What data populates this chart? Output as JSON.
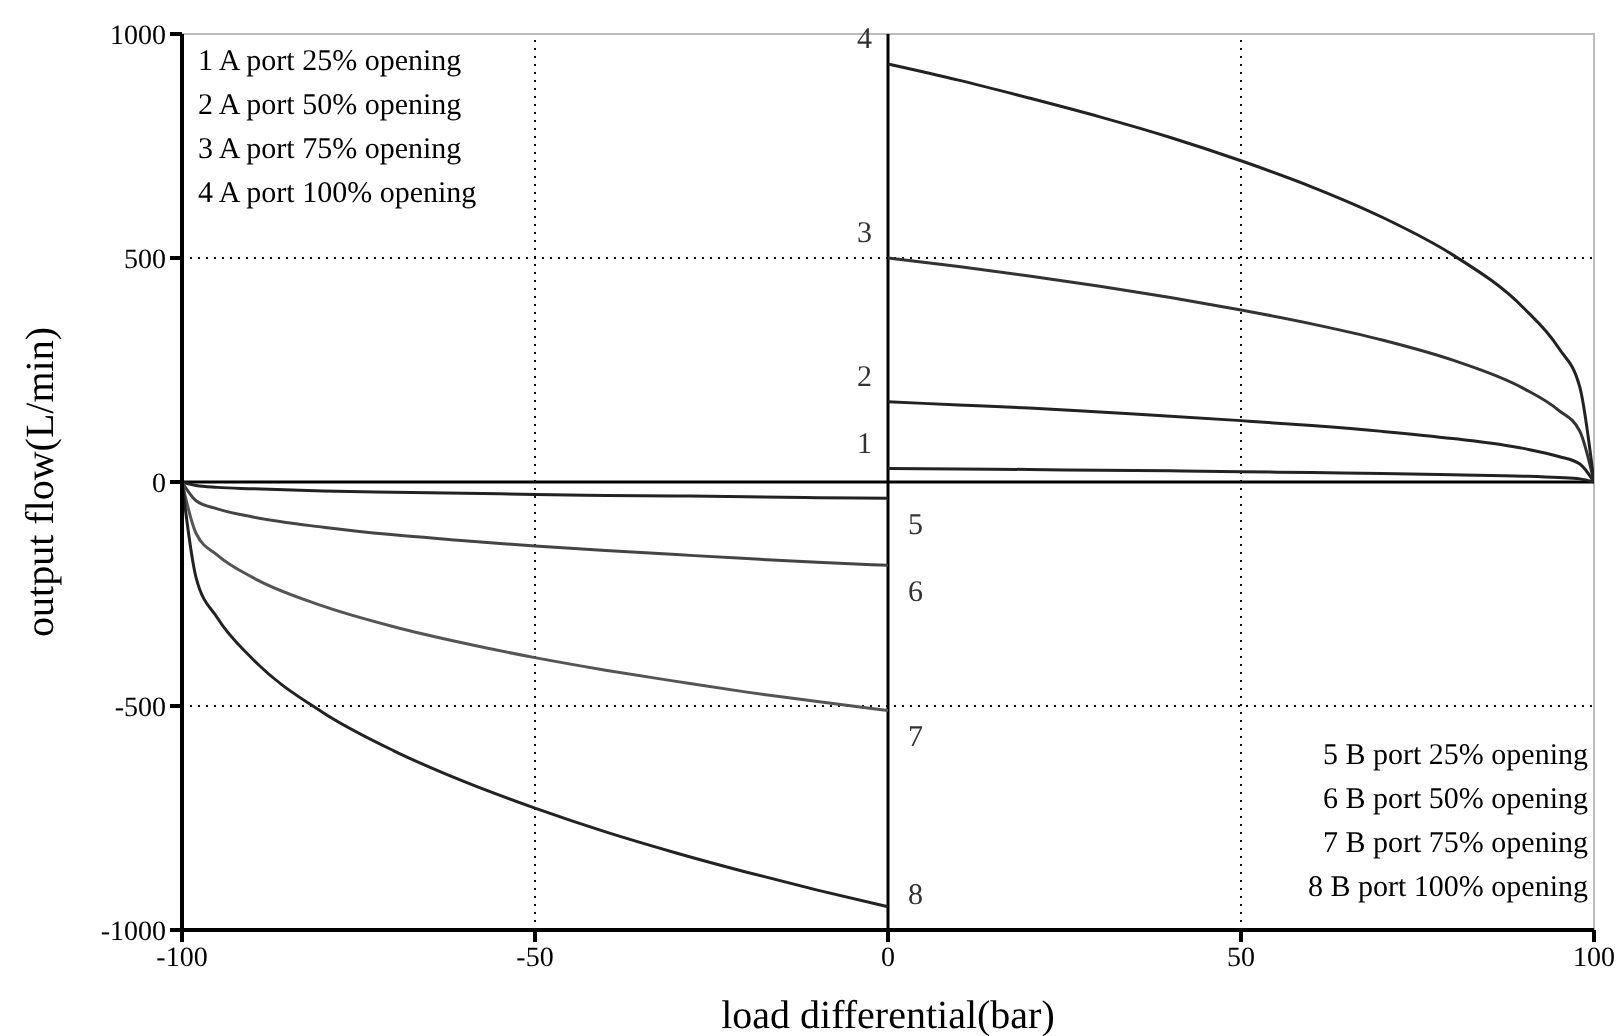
{
  "chart_data": {
    "type": "line",
    "xlabel": "load differential(bar)",
    "ylabel": "output flow(L/min)",
    "xlim": [
      -100,
      100
    ],
    "xticks": [
      -100,
      -50,
      0,
      50,
      100
    ],
    "ylim": [
      -1000,
      1000
    ],
    "yticks": [
      -1000,
      -500,
      0,
      500,
      1000
    ],
    "grid": true,
    "line_style": "solid",
    "annotations": [
      "1 A port 25% opening",
      "2 A port 50% opening",
      "3 A port 75% opening",
      "4 A port 100% opening",
      "5 B port 25% opening",
      "6 B port 50% opening",
      "7 B port 75% opening",
      "8 B port 100% opening"
    ],
    "series": [
      {
        "name": "1",
        "color": "#222222",
        "x": [
          0,
          10,
          20,
          30,
          40,
          50,
          60,
          70,
          80,
          90,
          95,
          98,
          100
        ],
        "values": [
          30,
          29,
          28,
          26,
          25,
          23,
          21,
          19,
          16,
          13,
          10,
          7,
          0
        ]
      },
      {
        "name": "2",
        "color": "#222222",
        "x": [
          0,
          10,
          20,
          30,
          40,
          50,
          60,
          70,
          80,
          90,
          95,
          98,
          100
        ],
        "values": [
          179,
          172,
          165,
          156,
          147,
          137,
          126,
          113,
          97,
          75,
          57,
          40,
          0
        ]
      },
      {
        "name": "3",
        "color": "#333333",
        "x": [
          0,
          10,
          20,
          30,
          40,
          50,
          60,
          70,
          80,
          90,
          95,
          98,
          100
        ],
        "values": [
          500,
          481,
          460,
          437,
          412,
          384,
          353,
          317,
          272,
          209,
          160,
          113,
          0
        ]
      },
      {
        "name": "4",
        "color": "#222222",
        "x": [
          0,
          10,
          20,
          30,
          40,
          50,
          60,
          70,
          80,
          90,
          95,
          98,
          100
        ],
        "values": [
          933,
          897,
          857,
          815,
          769,
          717,
          659,
          591,
          507,
          389,
          299,
          211,
          0
        ]
      },
      {
        "name": "5",
        "color": "#222222",
        "x": [
          -100,
          -98,
          -95,
          -90,
          -80,
          -70,
          -60,
          -50,
          -40,
          -30,
          -20,
          -10,
          0
        ],
        "values": [
          0,
          -8,
          -12,
          -15,
          -20,
          -23,
          -25,
          -28,
          -30,
          -31,
          -33,
          -35,
          -36
        ]
      },
      {
        "name": "6",
        "color": "#444444",
        "x": [
          -100,
          -98,
          -95,
          -90,
          -80,
          -70,
          -60,
          -50,
          -40,
          -30,
          -20,
          -10,
          0
        ],
        "values": [
          0,
          -42,
          -60,
          -78,
          -101,
          -118,
          -131,
          -143,
          -153,
          -162,
          -171,
          -179,
          -186
        ]
      },
      {
        "name": "7",
        "color": "#555555",
        "x": [
          -100,
          -98,
          -95,
          -90,
          -80,
          -70,
          -60,
          -50,
          -40,
          -30,
          -20,
          -10,
          0
        ],
        "values": [
          0,
          -115,
          -163,
          -213,
          -277,
          -323,
          -360,
          -392,
          -420,
          -445,
          -469,
          -490,
          -510
        ]
      },
      {
        "name": "8",
        "color": "#222222",
        "x": [
          -100,
          -98,
          -95,
          -90,
          -80,
          -70,
          -60,
          -50,
          -40,
          -30,
          -20,
          -10,
          0
        ],
        "values": [
          0,
          -214,
          -303,
          -395,
          -515,
          -600,
          -669,
          -728,
          -781,
          -828,
          -871,
          -911,
          -948
        ]
      }
    ]
  }
}
